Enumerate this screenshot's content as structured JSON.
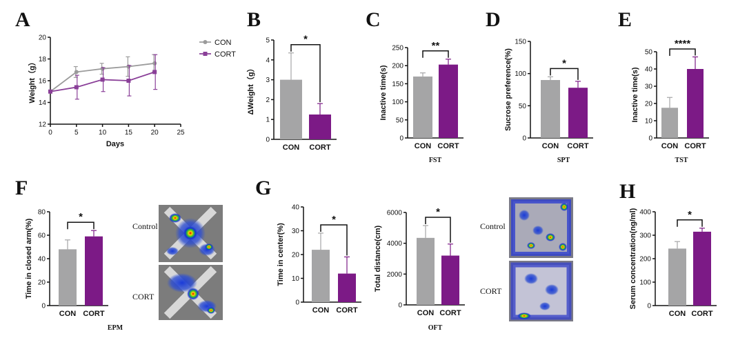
{
  "colors": {
    "con": "#a5a5a6",
    "cort": "#7c1a86",
    "line_con": "#9b9b9b",
    "line_cort": "#8a3f98"
  },
  "chart_data": [
    {
      "panel": "A",
      "type": "line",
      "title": "",
      "xlabel": "Days",
      "ylabel": "Weight（g）",
      "x": [
        0,
        5,
        10,
        15,
        20
      ],
      "xlim": [
        0,
        25
      ],
      "xticks": [
        "0",
        "5",
        "10",
        "15",
        "20",
        "25"
      ],
      "ylim": [
        12,
        20
      ],
      "yticks": [
        "12",
        "14",
        "16",
        "18",
        "20"
      ],
      "legend_position": "right",
      "series": [
        {
          "name": "CON",
          "key": "con",
          "values": [
            15.0,
            16.8,
            17.1,
            17.3,
            17.6
          ],
          "errors": [
            0.0,
            0.5,
            0.5,
            0.9,
            0.8
          ]
        },
        {
          "name": "CORT",
          "key": "cort",
          "values": [
            15.0,
            15.4,
            16.1,
            16.0,
            16.8
          ],
          "errors": [
            0.0,
            1.1,
            1.1,
            1.4,
            1.6
          ]
        }
      ]
    },
    {
      "panel": "B",
      "type": "bar",
      "title": "",
      "xlabel": "",
      "ylabel": "ΔWeight（g）",
      "categories": [
        "CON",
        "CORT"
      ],
      "values": [
        3.0,
        1.25
      ],
      "errors": [
        1.35,
        0.55
      ],
      "ylim": [
        0,
        5
      ],
      "yticks": [
        "0",
        "1",
        "2",
        "3",
        "4",
        "5"
      ],
      "significance": "*"
    },
    {
      "panel": "C",
      "type": "bar",
      "title": "FST",
      "xlabel": "",
      "ylabel": "Inactive time(s)",
      "categories": [
        "CON",
        "CORT"
      ],
      "values": [
        170,
        203
      ],
      "errors": [
        10,
        15
      ],
      "ylim": [
        0,
        250
      ],
      "yticks": [
        "0",
        "50",
        "100",
        "150",
        "200",
        "250"
      ],
      "significance": "**"
    },
    {
      "panel": "D",
      "type": "bar",
      "title": "SPT",
      "xlabel": "",
      "ylabel": "Sucrose preference(%)",
      "categories": [
        "CON",
        "CORT"
      ],
      "values": [
        90,
        78
      ],
      "errors": [
        5,
        10
      ],
      "ylim": [
        0,
        150
      ],
      "yticks": [
        "0",
        "50",
        "100",
        "150"
      ],
      "significance": "*"
    },
    {
      "panel": "E",
      "type": "bar",
      "title": "TST",
      "xlabel": "",
      "ylabel": "Inactive time(s)",
      "categories": [
        "CON",
        "CORT"
      ],
      "values": [
        17.5,
        40
      ],
      "errors": [
        6,
        7
      ],
      "ylim": [
        0,
        50
      ],
      "yticks": [
        "0",
        "10",
        "20",
        "30",
        "40",
        "50"
      ],
      "significance": "****"
    },
    {
      "panel": "F",
      "type": "bar",
      "title": "EPM",
      "xlabel": "",
      "ylabel": "Time in closed arm(%)",
      "categories": [
        "CON",
        "CORT"
      ],
      "values": [
        48,
        59
      ],
      "errors": [
        8,
        5
      ],
      "ylim": [
        0,
        80
      ],
      "yticks": [
        "0",
        "20",
        "40",
        "60",
        "80"
      ],
      "significance": "*",
      "images": [
        "Control",
        "CORT"
      ]
    },
    {
      "panel": "G1",
      "type": "bar",
      "title": "",
      "xlabel": "",
      "ylabel": "Time in center(%)",
      "categories": [
        "CON",
        "CORT"
      ],
      "values": [
        22,
        12
      ],
      "errors": [
        7,
        7
      ],
      "ylim": [
        0,
        40
      ],
      "yticks": [
        "0",
        "10",
        "20",
        "30",
        "40"
      ],
      "significance": "*"
    },
    {
      "panel": "G2",
      "type": "bar",
      "title": "OFT",
      "xlabel": "",
      "ylabel": "Total distance(cm)",
      "categories": [
        "CON",
        "CORT"
      ],
      "values": [
        4350,
        3200
      ],
      "errors": [
        800,
        750
      ],
      "ylim": [
        0,
        6000
      ],
      "yticks": [
        "0",
        "2000",
        "4000",
        "6000"
      ],
      "significance": "*",
      "images": [
        "Control",
        "CORT"
      ]
    },
    {
      "panel": "H",
      "type": "bar",
      "title": "",
      "xlabel": "",
      "ylabel": "Serum concentration(ng/ml)",
      "categories": [
        "CON",
        "CORT"
      ],
      "values": [
        243,
        315
      ],
      "errors": [
        30,
        15
      ],
      "ylim": [
        0,
        400
      ],
      "yticks": [
        "0",
        "100",
        "200",
        "300",
        "400"
      ],
      "significance": "*"
    }
  ],
  "panel_letters": [
    "A",
    "B",
    "C",
    "D",
    "E",
    "F",
    "G",
    "H"
  ]
}
